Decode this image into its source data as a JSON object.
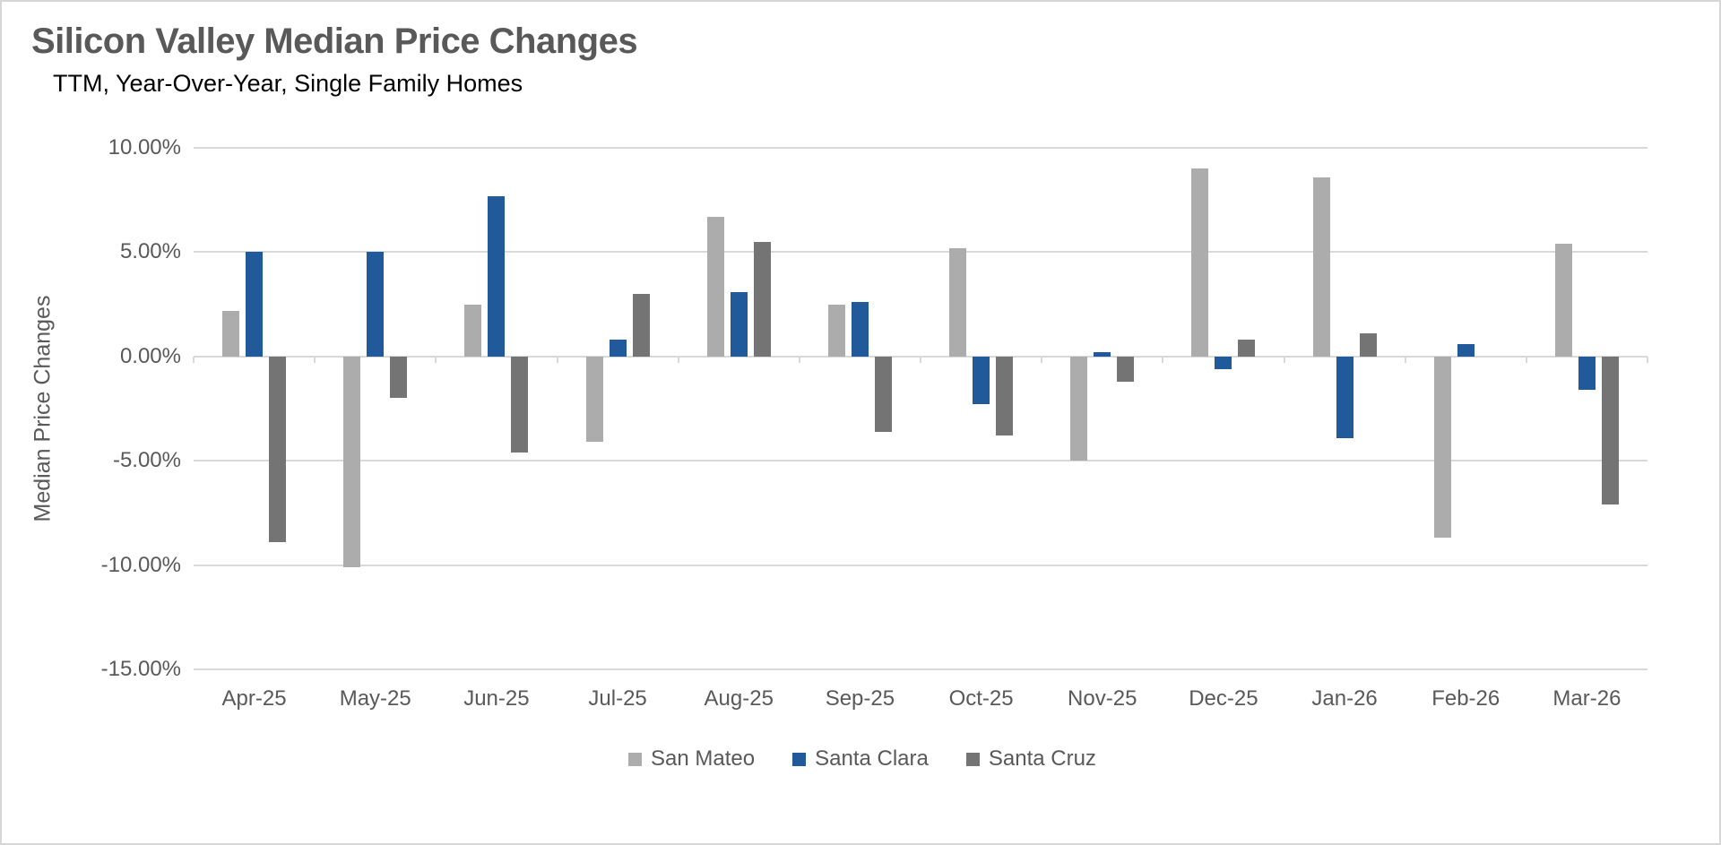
{
  "chart_data": {
    "type": "bar",
    "title": "Silicon Valley Median Price Changes",
    "subtitle": "TTM, Year-Over-Year, Single Family Homes",
    "ylabel": "Median Price Changes",
    "categories": [
      "Apr-25",
      "May-25",
      "Jun-25",
      "Jul-25",
      "Aug-25",
      "Sep-25",
      "Oct-25",
      "Nov-25",
      "Dec-25",
      "Jan-26",
      "Feb-26",
      "Mar-26"
    ],
    "series": [
      {
        "name": "San Mateo",
        "color": "#ACACAC",
        "values": [
          2.2,
          -10.1,
          2.5,
          -4.1,
          6.7,
          2.5,
          5.2,
          -5.0,
          9.0,
          8.6,
          -8.7,
          5.4
        ]
      },
      {
        "name": "Santa Clara",
        "color": "#205A9A",
        "values": [
          5.0,
          5.0,
          7.7,
          0.8,
          3.1,
          2.6,
          -2.3,
          0.2,
          -0.6,
          -3.9,
          0.6,
          -1.6
        ]
      },
      {
        "name": "Santa Cruz",
        "color": "#747474",
        "values": [
          -8.9,
          -2.0,
          -4.6,
          3.0,
          5.5,
          -3.6,
          -3.8,
          -1.2,
          0.8,
          1.1,
          0.0,
          -7.1
        ]
      }
    ],
    "y_axis": {
      "tick_labels": [
        "10.00%",
        "5.00%",
        "0.00%",
        "-5.00%",
        "-10.00%",
        "-15.00%"
      ],
      "tick_values": [
        10,
        5,
        0,
        -5,
        -10,
        -15
      ],
      "min": -15,
      "max": 10
    },
    "grid": true,
    "legend_position": "bottom",
    "colors": {
      "gridline": "#D9D9D9",
      "axis_text": "#595959",
      "title_text": "#595959",
      "subtitle_text": "#000000"
    }
  }
}
